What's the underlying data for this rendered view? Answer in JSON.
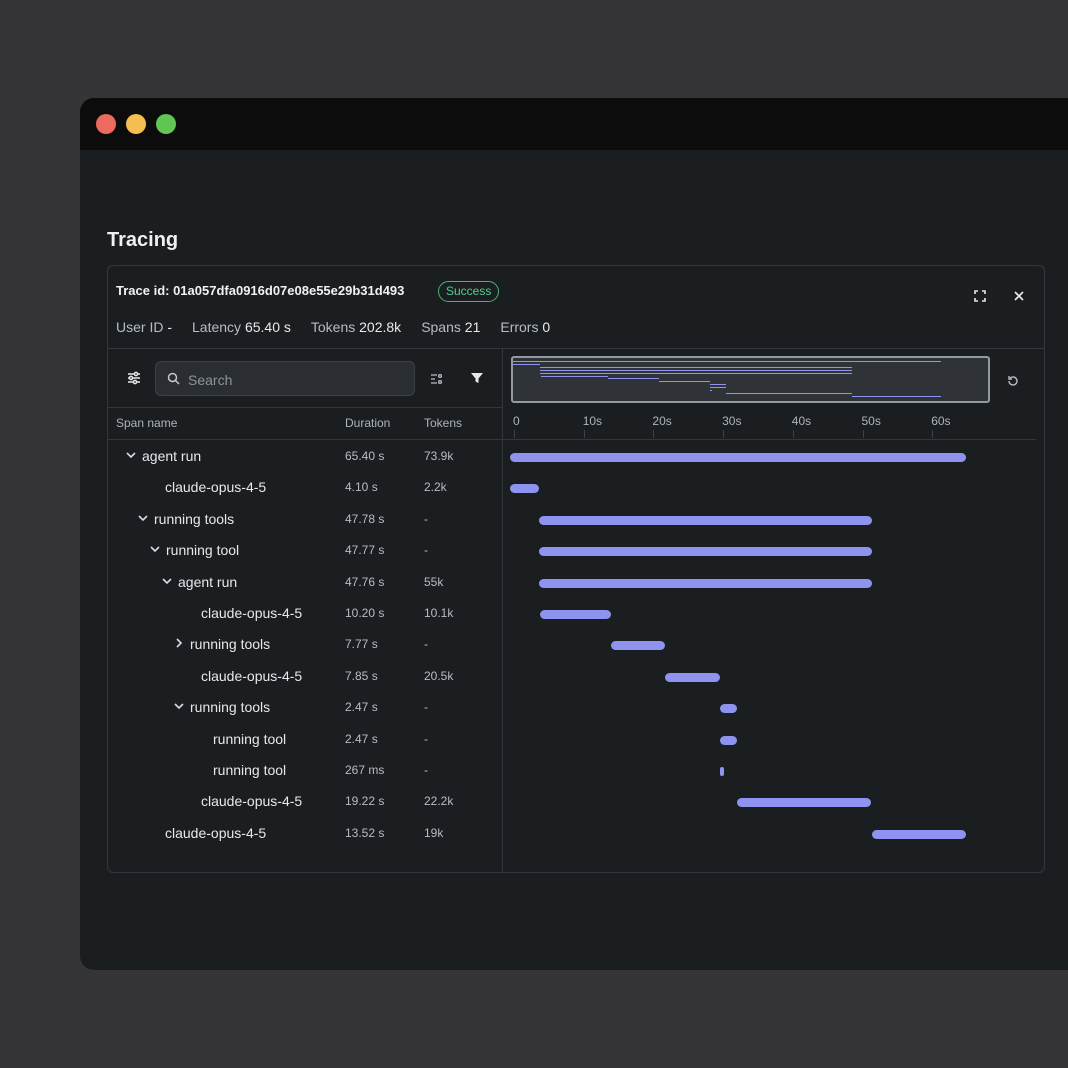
{
  "page": {
    "title": "Tracing"
  },
  "trace": {
    "id_label": "Trace id: 01a057dfa0916d07e08e55e29b31d493",
    "status": "Success",
    "status_color": "#4fd18a",
    "stats": [
      {
        "label": "User ID",
        "value": "-"
      },
      {
        "label": "Latency",
        "value": "65.40 s"
      },
      {
        "label": "Tokens",
        "value": "202.8k"
      },
      {
        "label": "Spans",
        "value": "21"
      },
      {
        "label": "Errors",
        "value": "0"
      }
    ]
  },
  "toolbar": {
    "search_placeholder": "Search",
    "icons": [
      "sliders-icon",
      "search-icon",
      "list-settings-icon",
      "filter-icon",
      "reset-icon",
      "expand-icon",
      "close-icon"
    ]
  },
  "columns": {
    "name": "Span name",
    "duration": "Duration",
    "tokens": "Tokens"
  },
  "timeline": {
    "bar_color": "#8d93ee",
    "total_s": 72,
    "ticks": [
      "0",
      "10s",
      "20s",
      "30s",
      "40s",
      "50s",
      "60s"
    ]
  },
  "spans": [
    {
      "name": "agent run",
      "depth": 0,
      "chevron": "down",
      "duration": "65.40 s",
      "tokens": "73.9k",
      "start_s": 0,
      "dur_s": 65.4
    },
    {
      "name": "claude-opus-4-5",
      "depth": 1,
      "chevron": "none",
      "duration": "4.10 s",
      "tokens": "2.2k",
      "start_s": 0,
      "dur_s": 4.1
    },
    {
      "name": "running tools",
      "depth": 1,
      "chevron": "down",
      "duration": "47.78 s",
      "tokens": "-",
      "start_s": 4.1,
      "dur_s": 47.78
    },
    {
      "name": "running tool",
      "depth": 2,
      "chevron": "down",
      "duration": "47.77 s",
      "tokens": "-",
      "start_s": 4.1,
      "dur_s": 47.77
    },
    {
      "name": "agent run",
      "depth": 3,
      "chevron": "down",
      "duration": "47.76 s",
      "tokens": "55k",
      "start_s": 4.11,
      "dur_s": 47.76
    },
    {
      "name": "claude-opus-4-5",
      "depth": 4,
      "chevron": "none",
      "duration": "10.20 s",
      "tokens": "10.1k",
      "start_s": 4.3,
      "dur_s": 10.2
    },
    {
      "name": "running tools",
      "depth": 4,
      "chevron": "right",
      "duration": "7.77 s",
      "tokens": "-",
      "start_s": 14.5,
      "dur_s": 7.77
    },
    {
      "name": "claude-opus-4-5",
      "depth": 4,
      "chevron": "none",
      "duration": "7.85 s",
      "tokens": "20.5k",
      "start_s": 22.27,
      "dur_s": 7.85
    },
    {
      "name": "running tools",
      "depth": 4,
      "chevron": "down",
      "duration": "2.47 s",
      "tokens": "-",
      "start_s": 30.12,
      "dur_s": 2.47
    },
    {
      "name": "running tool",
      "depth": 5,
      "chevron": "none",
      "duration": "2.47 s",
      "tokens": "-",
      "start_s": 30.12,
      "dur_s": 2.47
    },
    {
      "name": "running tool",
      "depth": 5,
      "chevron": "none",
      "duration": "267 ms",
      "tokens": "-",
      "start_s": 30.12,
      "dur_s": 0.267
    },
    {
      "name": "claude-opus-4-5",
      "depth": 4,
      "chevron": "none",
      "duration": "19.22 s",
      "tokens": "22.2k",
      "start_s": 32.6,
      "dur_s": 19.22
    },
    {
      "name": "claude-opus-4-5",
      "depth": 1,
      "chevron": "none",
      "duration": "13.52 s",
      "tokens": "19k",
      "start_s": 51.87,
      "dur_s": 13.52
    }
  ]
}
